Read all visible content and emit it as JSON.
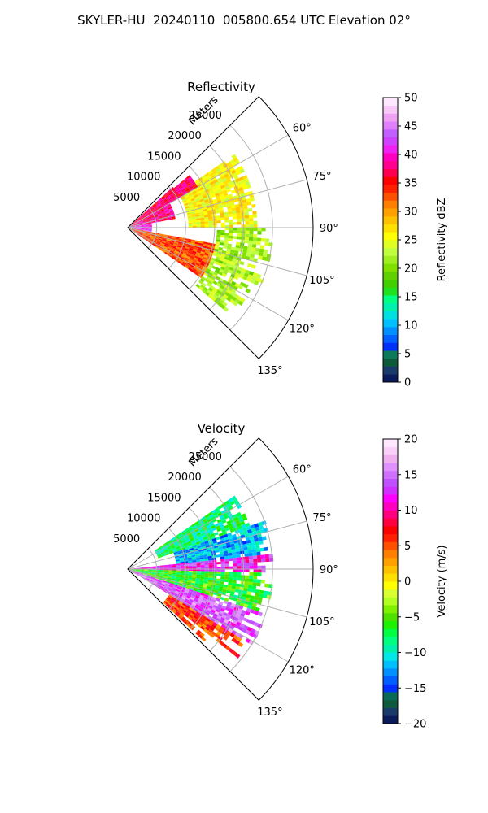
{
  "suptitle": "SKYLER-HU  20240110  005800.654 UTC Elevation 02°",
  "chart_data": [
    {
      "type": "heatmap",
      "title": "Reflectivity",
      "projection": "polar sector",
      "radial_axis_label": "Meters",
      "radial_ticks": [
        5000,
        10000,
        15000,
        20000,
        25000
      ],
      "radial_tick_labels": [
        "5000",
        "10000",
        "15000",
        "20000",
        "25000"
      ],
      "rlim": [
        0,
        32000
      ],
      "angle_ticks": [
        60,
        75,
        90,
        105,
        120,
        135
      ],
      "angle_tick_labels": [
        "60°",
        "75°",
        "90°",
        "105°",
        "120°",
        "135°"
      ],
      "angle_range": [
        45,
        135
      ],
      "grid": true,
      "colorbar": {
        "label": "Reflectivity dBZ",
        "range": [
          0,
          50
        ],
        "ticks": [
          0,
          5,
          10,
          15,
          20,
          25,
          30,
          35,
          40,
          45,
          50
        ],
        "tick_labels": [
          "0",
          "5",
          "10",
          "15",
          "20",
          "25",
          "30",
          "35",
          "40",
          "45",
          "50"
        ],
        "colors": [
          "#0a1a5a",
          "#1a3a6a",
          "#0d5a3a",
          "#0a7a5a",
          "#0030ff",
          "#0060ff",
          "#0090ff",
          "#00c0ff",
          "#00e0e0",
          "#00f0b0",
          "#00ff80",
          "#20e020",
          "#40d000",
          "#60d000",
          "#80e000",
          "#a0f020",
          "#c0ff40",
          "#e0ff20",
          "#ffff00",
          "#ffe000",
          "#ffc000",
          "#ffa000",
          "#ff8000",
          "#ff5000",
          "#ff2000",
          "#ff0000",
          "#ff0050",
          "#ff0090",
          "#ff00c0",
          "#f020f0",
          "#d040ff",
          "#c060ff",
          "#e080ff",
          "#f0a0f0",
          "#f8c8f8",
          "#ffe8ff"
        ]
      },
      "field_description": [
        {
          "angle_range": [
            48,
            60
          ],
          "range_m": [
            0,
            14000
          ],
          "value_dbz": 37
        },
        {
          "angle_range": [
            60,
            80
          ],
          "range_m": [
            0,
            8000
          ],
          "value_dbz": 38
        },
        {
          "angle_range": [
            80,
            100
          ],
          "range_m": [
            0,
            4000
          ],
          "value_dbz": 42
        },
        {
          "angle_range": [
            100,
            125
          ],
          "range_m": [
            0,
            15000
          ],
          "value_dbz": 33
        },
        {
          "angle_range": [
            55,
            90
          ],
          "range_m": [
            10000,
            22000
          ],
          "value_dbz": 26
        },
        {
          "angle_range": [
            90,
            130
          ],
          "range_m": [
            15000,
            25000
          ],
          "value_dbz": 22
        }
      ]
    },
    {
      "type": "heatmap",
      "title": "Velocity",
      "projection": "polar sector",
      "radial_axis_label": "Meters",
      "radial_ticks": [
        5000,
        10000,
        15000,
        20000,
        25000
      ],
      "radial_tick_labels": [
        "5000",
        "10000",
        "15000",
        "20000",
        "25000"
      ],
      "rlim": [
        0,
        32000
      ],
      "angle_ticks": [
        60,
        75,
        90,
        105,
        120,
        135
      ],
      "angle_tick_labels": [
        "60°",
        "75°",
        "90°",
        "105°",
        "120°",
        "135°"
      ],
      "angle_range": [
        45,
        135
      ],
      "grid": true,
      "colorbar": {
        "label": "Velocity (m/s)",
        "range": [
          -20,
          20
        ],
        "ticks": [
          -20,
          -15,
          -10,
          -5,
          0,
          5,
          10,
          15,
          20
        ],
        "tick_labels": [
          "−20",
          "−15",
          "−10",
          "−5",
          "0",
          "5",
          "10",
          "15",
          "20"
        ],
        "colors": [
          "#0a1a5a",
          "#1a3a6a",
          "#0d5a3a",
          "#0a6a5a",
          "#0030ff",
          "#0060ff",
          "#0090ff",
          "#00c0ff",
          "#00e8e8",
          "#00f0b0",
          "#00ff80",
          "#00ff40",
          "#20f000",
          "#50e000",
          "#80f000",
          "#b0ff20",
          "#d8ff30",
          "#ffff00",
          "#ffe000",
          "#ffc000",
          "#ffa000",
          "#ff8000",
          "#ff5000",
          "#ff2000",
          "#ff0000",
          "#ff0040",
          "#ff0080",
          "#ff00c0",
          "#ff00ff",
          "#d030ff",
          "#c050ff",
          "#d070ff",
          "#e090ff",
          "#f0b0f0",
          "#f8d0f8",
          "#ffe8ff"
        ]
      },
      "field_description": [
        {
          "angle_range": [
            55,
            70
          ],
          "range_m": [
            5000,
            22000
          ],
          "value_ms": -8
        },
        {
          "angle_range": [
            70,
            84
          ],
          "range_m": [
            8000,
            25000
          ],
          "value_ms": -12
        },
        {
          "angle_range": [
            84,
            92
          ],
          "range_m": [
            0,
            25000
          ],
          "value_ms": 12
        },
        {
          "angle_range": [
            92,
            108
          ],
          "range_m": [
            0,
            25000
          ],
          "value_ms": -6
        },
        {
          "angle_range": [
            108,
            122
          ],
          "range_m": [
            0,
            25000
          ],
          "value_ms": 14
        },
        {
          "angle_range": [
            122,
            133
          ],
          "range_m": [
            8000,
            25000
          ],
          "value_ms": 6
        }
      ]
    }
  ]
}
